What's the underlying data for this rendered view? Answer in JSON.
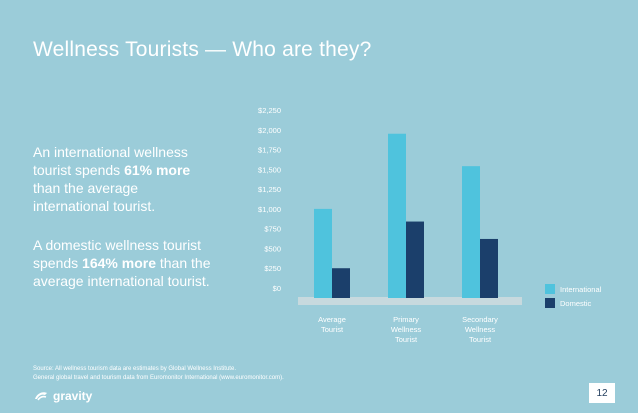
{
  "slide": {
    "title": "Wellness Tourists — Who are they?",
    "stat1": {
      "prefix": "An international wellness tourist spends ",
      "highlight": "61% more",
      "suffix": " than the average international tourist."
    },
    "stat2": {
      "prefix": "A domestic wellness tourist spends ",
      "highlight": "164% more",
      "suffix": " than the average international tourist."
    },
    "source_line1": "Source: All wellness tourism data are estimates by Global Wellness Institute.",
    "source_line2": "General global travel and tourism data from Euromonitor International (www.euromonitor.com).",
    "logo_text": "gravity",
    "page_number": "12"
  },
  "colors": {
    "background": "#9bccd9",
    "international": "#4fc3dd",
    "domestic": "#1b3f6b",
    "axis_floor": "#c7d9de",
    "text": "#ffffff"
  },
  "chart_data": {
    "type": "bar",
    "categories": [
      "Average\nTourist",
      "Primary\nWellness\nTourist",
      "Secondary\nWellness\nTourist"
    ],
    "series": [
      {
        "name": "International",
        "values": [
          1000,
          1950,
          1540
        ]
      },
      {
        "name": "Domestic",
        "values": [
          250,
          840,
          620
        ]
      }
    ],
    "ylim": [
      0,
      2250
    ],
    "y_ticks": [
      "$0",
      "$250",
      "$500",
      "$750",
      "$1,000",
      "$1,250",
      "$1,500",
      "$1,750",
      "$2,000",
      "$2,250"
    ],
    "y_tick_values": [
      0,
      250,
      500,
      750,
      1000,
      1250,
      1500,
      1750,
      2000,
      2250
    ],
    "legend_position": "bottom-right",
    "grid": false
  }
}
